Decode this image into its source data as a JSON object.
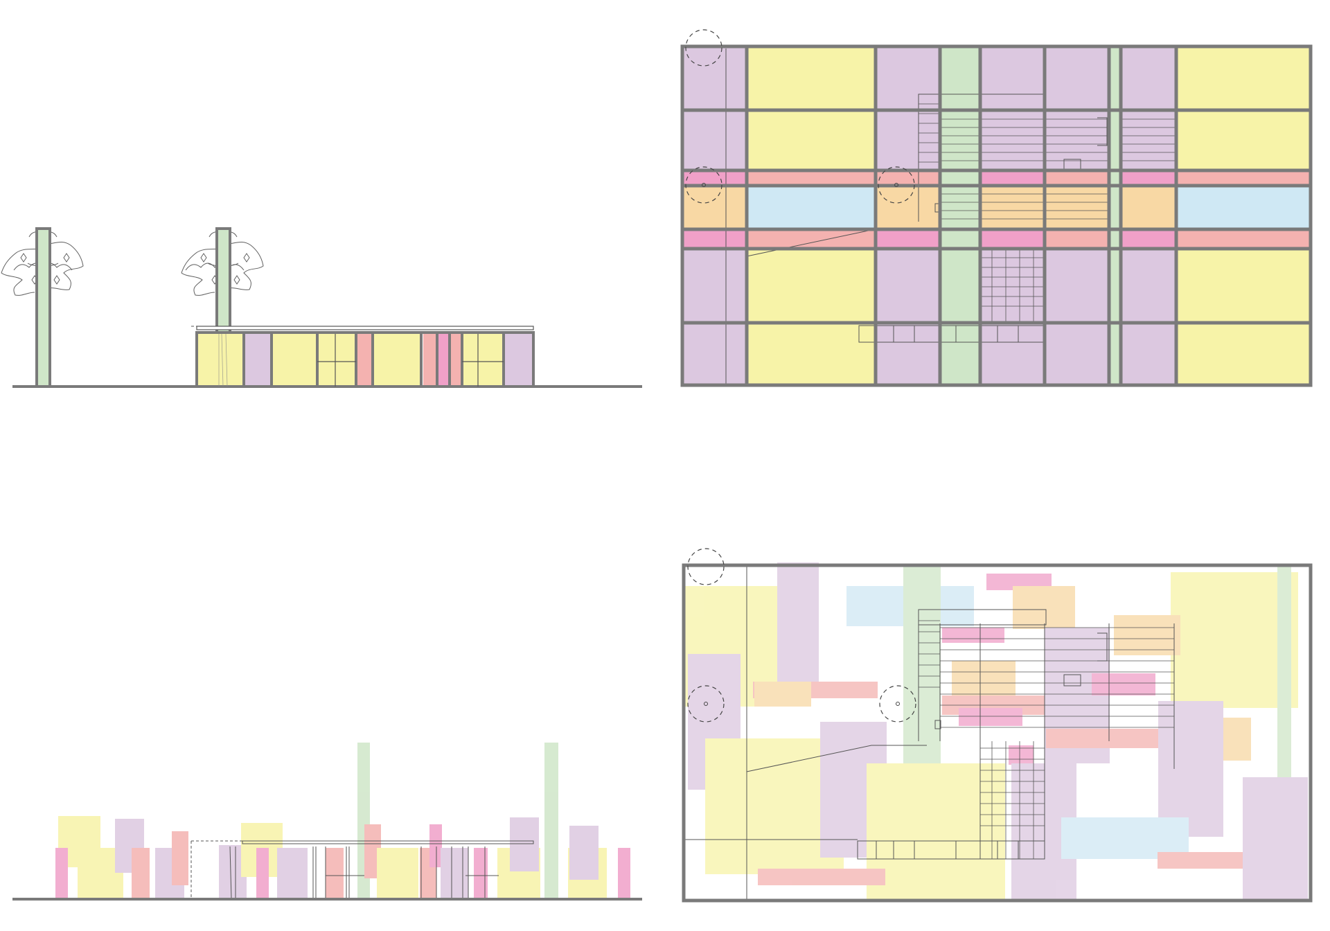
{
  "palette": {
    "frame": "#7a7a7a",
    "yellow": "#f7f3a8",
    "purple": "#dcc8e0",
    "green": "#cfe6c8",
    "pink": "#f0a0c8",
    "salmon": "#f4b2b0",
    "blue": "#cfe8f4",
    "orange": "#f8d8a4",
    "line": "#555555",
    "tree": "#444444"
  },
  "panels": [
    {
      "id": "elevation-gridded",
      "kind": "elevation",
      "mode": "gridded"
    },
    {
      "id": "plan-gridded",
      "kind": "plan",
      "mode": "gridded"
    },
    {
      "id": "elevation-scattered",
      "kind": "elevation",
      "mode": "scattered"
    },
    {
      "id": "plan-scattered",
      "kind": "plan",
      "mode": "scattered"
    }
  ],
  "legend_colors": [
    "yellow",
    "purple",
    "green",
    "pink",
    "salmon",
    "blue",
    "orange"
  ]
}
